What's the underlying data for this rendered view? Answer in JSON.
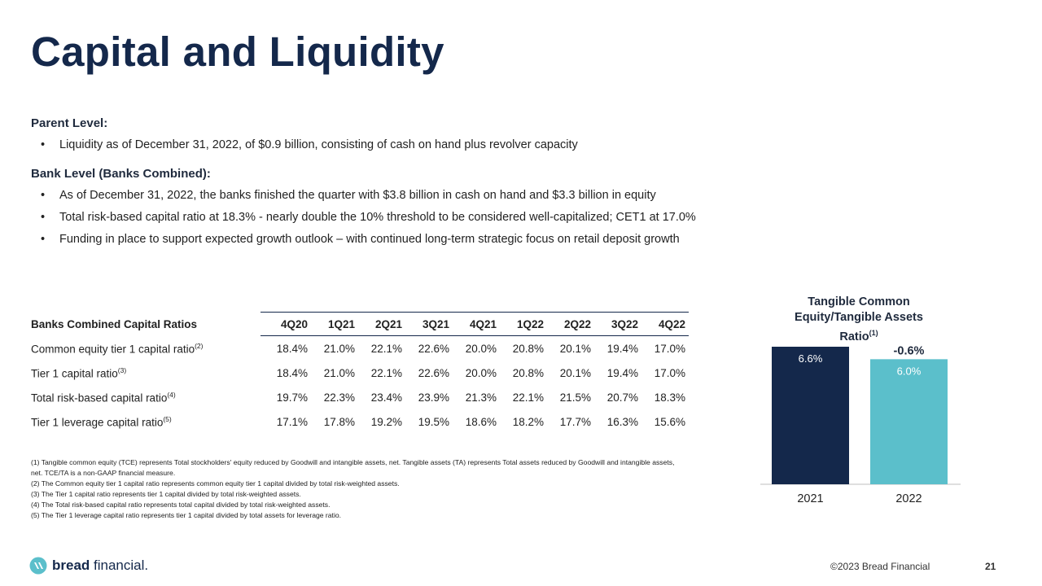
{
  "title": "Capital and Liquidity",
  "parent": {
    "heading": "Parent Level:",
    "bullets": [
      "Liquidity as of December 31, 2022, of $0.9 billion, consisting of cash on hand plus revolver capacity"
    ]
  },
  "bank": {
    "heading": "Bank Level (Banks Combined):",
    "bullets": [
      "As of December 31, 2022, the banks finished the quarter with $3.8 billion in cash on hand and $3.3 billion in equity",
      "Total risk-based capital ratio at 18.3% - nearly double the 10% threshold to be considered well-capitalized; CET1 at 17.0%",
      "Funding in place to support expected growth outlook – with continued long-term strategic focus on retail deposit growth"
    ]
  },
  "table": {
    "header_label": "Banks Combined Capital Ratios",
    "quarters": [
      "4Q20",
      "1Q21",
      "2Q21",
      "3Q21",
      "4Q21",
      "1Q22",
      "2Q22",
      "3Q22",
      "4Q22"
    ],
    "rows": [
      {
        "label": "Common equity tier 1 capital ratio",
        "note": "(2)",
        "values": [
          "18.4%",
          "21.0%",
          "22.1%",
          "22.6%",
          "20.0%",
          "20.8%",
          "20.1%",
          "19.4%",
          "17.0%"
        ]
      },
      {
        "label": "Tier 1 capital ratio",
        "note": "(3)",
        "values": [
          "18.4%",
          "21.0%",
          "22.1%",
          "22.6%",
          "20.0%",
          "20.8%",
          "20.1%",
          "19.4%",
          "17.0%"
        ]
      },
      {
        "label": "Total risk-based capital ratio",
        "note": "(4)",
        "values": [
          "19.7%",
          "22.3%",
          "23.4%",
          "23.9%",
          "21.3%",
          "22.1%",
          "21.5%",
          "20.7%",
          "18.3%"
        ]
      },
      {
        "label": "Tier 1 leverage capital ratio",
        "note": "(5)",
        "values": [
          "17.1%",
          "17.8%",
          "19.2%",
          "19.5%",
          "18.6%",
          "18.2%",
          "17.7%",
          "16.3%",
          "15.6%"
        ]
      }
    ]
  },
  "footnotes": [
    "(1) Tangible common equity (TCE) represents Total stockholders' equity reduced by Goodwill and intangible assets, net. Tangible assets (TA) represents Total assets reduced by Goodwill and intangible assets, net. TCE/TA is a non-GAAP financial measure.",
    "(2) The Common equity tier 1 capital ratio represents common equity tier 1 capital divided by total risk-weighted assets.",
    "(3) The Tier 1 capital ratio represents tier 1 capital divided by total risk-weighted assets.",
    "(4) The Total risk-based capital ratio represents total capital divided by total risk-weighted assets.",
    "(5) The Tier 1 leverage capital ratio represents tier 1 capital divided by total assets for leverage ratio."
  ],
  "chart_data": {
    "type": "bar",
    "title": "Tangible Common Equity/Tangible Assets Ratio",
    "title_note": "(1)",
    "categories": [
      "2021",
      "2022"
    ],
    "values": [
      6.6,
      6.0
    ],
    "value_labels": [
      "6.6%",
      "6.0%"
    ],
    "change_label": "-0.6%",
    "colors": [
      "#14284b",
      "#5bbfcb"
    ],
    "xlabel": "",
    "ylabel": "",
    "ylim": [
      0,
      6.6
    ]
  },
  "footer": {
    "brand_bold": "bread",
    "brand_rest": " financial.",
    "copyright": "©2023 Bread Financial",
    "page": "21"
  }
}
